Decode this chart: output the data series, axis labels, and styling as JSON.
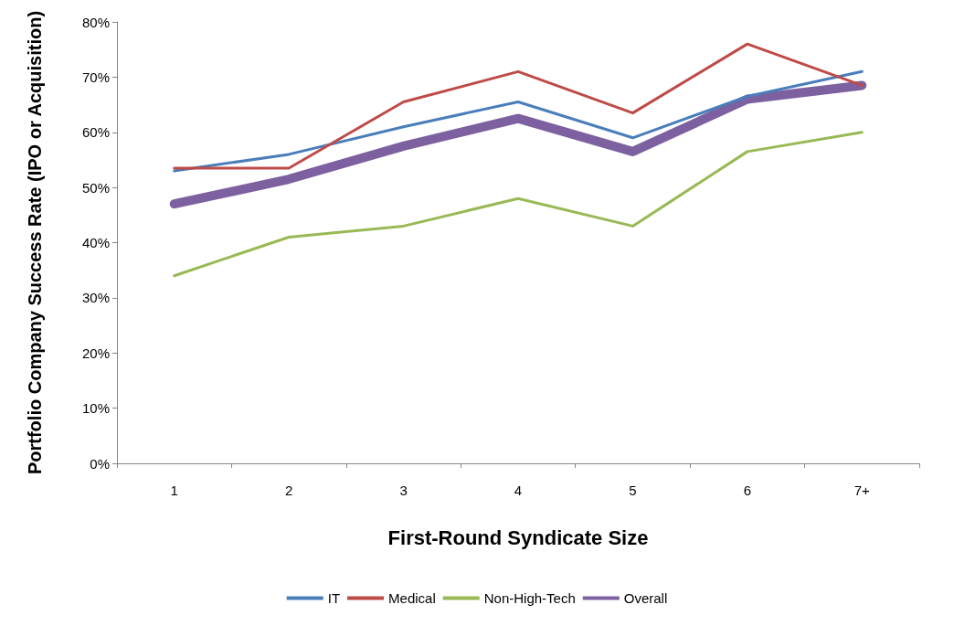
{
  "chart_data": {
    "type": "line",
    "xlabel": "First-Round Syndicate Size",
    "ylabel": "Portfolio Company Success Rate (IPO or Acquisition)",
    "categories": [
      "1",
      "2",
      "3",
      "4",
      "5",
      "6",
      "7+"
    ],
    "series": [
      {
        "name": "IT",
        "color": "#4a7ebb",
        "values": [
          53,
          56,
          61,
          65.5,
          59,
          66.5,
          71
        ]
      },
      {
        "name": "Medical",
        "color": "#be4b48",
        "values": [
          53.5,
          53.5,
          65.5,
          71,
          63.5,
          76,
          68.5
        ]
      },
      {
        "name": "Non-High-Tech",
        "color": "#98b954",
        "values": [
          34,
          41,
          43,
          48,
          43,
          56.5,
          60
        ]
      },
      {
        "name": "Overall",
        "color": "#7d60a0",
        "values": [
          47,
          51.5,
          57.5,
          62.5,
          56.5,
          66,
          68.5
        ]
      }
    ],
    "ylim": [
      0,
      80
    ],
    "yticks": [
      {
        "value": 0,
        "label": "0%"
      },
      {
        "value": 10,
        "label": "10%"
      },
      {
        "value": 20,
        "label": "20%"
      },
      {
        "value": 30,
        "label": "30%"
      },
      {
        "value": 40,
        "label": "40%"
      },
      {
        "value": 50,
        "label": "50%"
      },
      {
        "value": 60,
        "label": "60%"
      },
      {
        "value": 70,
        "label": "70%"
      },
      {
        "value": 80,
        "label": "80%"
      }
    ],
    "legend": "bottom",
    "marker": "none",
    "line_style": "solid",
    "grid": false
  }
}
